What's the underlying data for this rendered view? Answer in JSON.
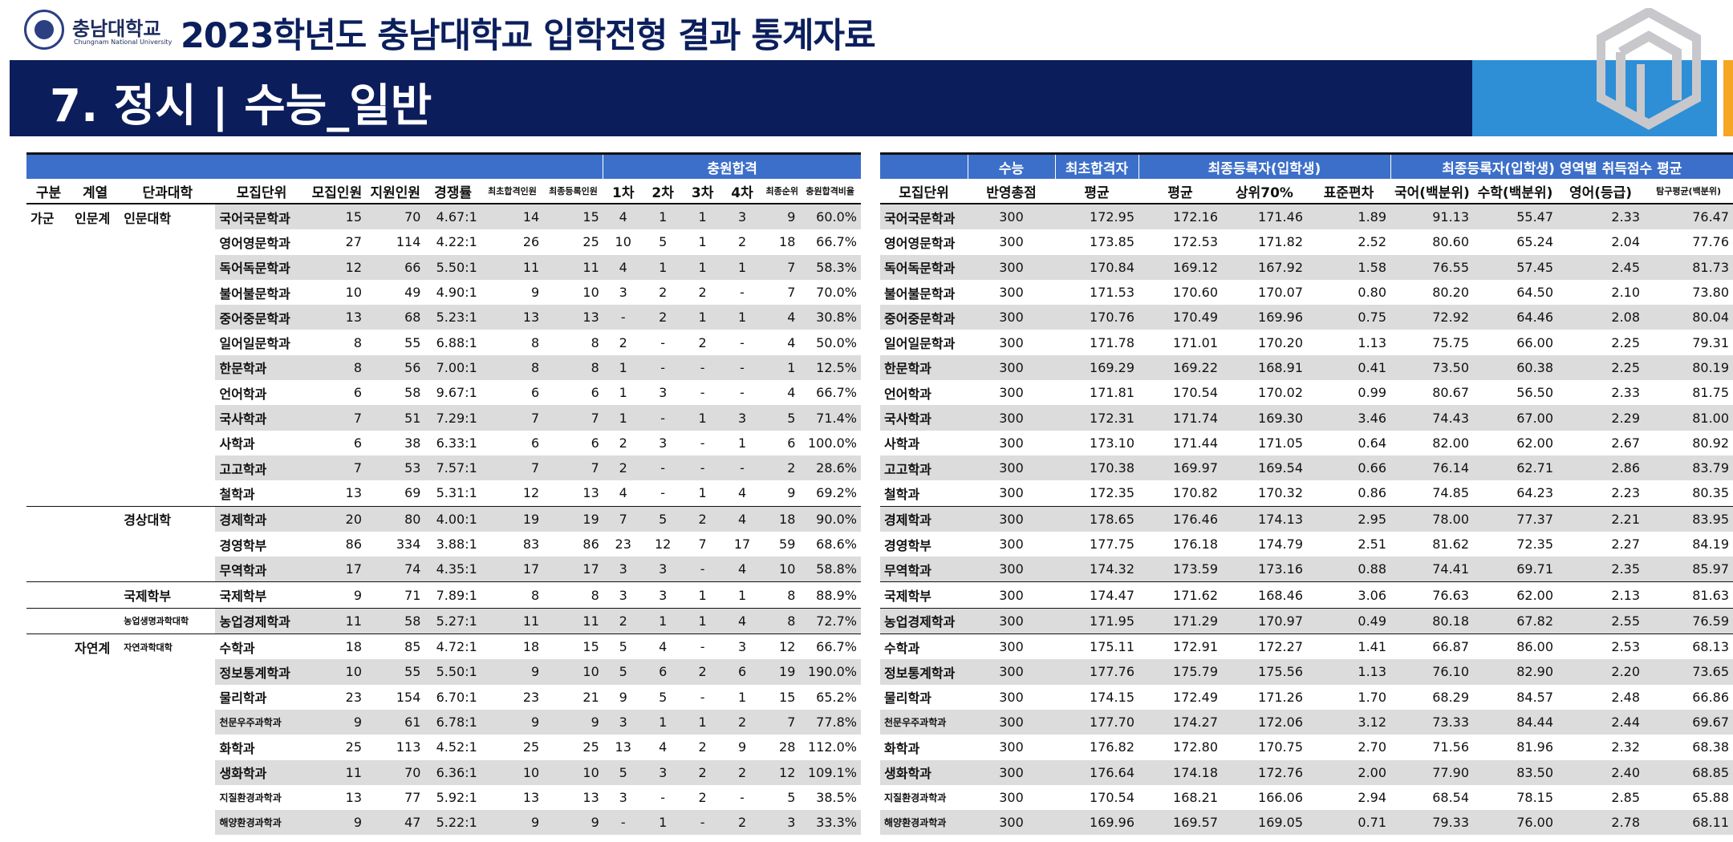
{
  "header": {
    "logo_text": "충남대학교",
    "logo_sub": "Chungnam National University",
    "title": "2023학년도 충남대학교 입학전형 결과 통계자료",
    "section": "7. 정시 | 수능_일반"
  },
  "left_table": {
    "group_header": "충원합격",
    "headers": [
      "구분",
      "계열",
      "단과대학",
      "모집단위",
      "모집인원",
      "지원인원",
      "경쟁률",
      "최초합격인원",
      "최종등록인원",
      "1차",
      "2차",
      "3차",
      "4차",
      "최종순위",
      "충원합격비율"
    ],
    "rows": [
      [
        "가군",
        "인문계",
        "인문대학",
        "국어국문학과",
        "15",
        "70",
        "4.67:1",
        "14",
        "15",
        "4",
        "1",
        "1",
        "3",
        "9",
        "60.0%"
      ],
      [
        "",
        "",
        "",
        "영어영문학과",
        "27",
        "114",
        "4.22:1",
        "26",
        "25",
        "10",
        "5",
        "1",
        "2",
        "18",
        "66.7%"
      ],
      [
        "",
        "",
        "",
        "독어독문학과",
        "12",
        "66",
        "5.50:1",
        "11",
        "11",
        "4",
        "1",
        "1",
        "1",
        "7",
        "58.3%"
      ],
      [
        "",
        "",
        "",
        "불어불문학과",
        "10",
        "49",
        "4.90:1",
        "9",
        "10",
        "3",
        "2",
        "2",
        "-",
        "7",
        "70.0%"
      ],
      [
        "",
        "",
        "",
        "중어중문학과",
        "13",
        "68",
        "5.23:1",
        "13",
        "13",
        "-",
        "2",
        "1",
        "1",
        "4",
        "30.8%"
      ],
      [
        "",
        "",
        "",
        "일어일문학과",
        "8",
        "55",
        "6.88:1",
        "8",
        "8",
        "2",
        "-",
        "2",
        "-",
        "4",
        "50.0%"
      ],
      [
        "",
        "",
        "",
        "한문학과",
        "8",
        "56",
        "7.00:1",
        "8",
        "8",
        "1",
        "-",
        "-",
        "-",
        "1",
        "12.5%"
      ],
      [
        "",
        "",
        "",
        "언어학과",
        "6",
        "58",
        "9.67:1",
        "6",
        "6",
        "1",
        "3",
        "-",
        "-",
        "4",
        "66.7%"
      ],
      [
        "",
        "",
        "",
        "국사학과",
        "7",
        "51",
        "7.29:1",
        "7",
        "7",
        "1",
        "-",
        "1",
        "3",
        "5",
        "71.4%"
      ],
      [
        "",
        "",
        "",
        "사학과",
        "6",
        "38",
        "6.33:1",
        "6",
        "6",
        "2",
        "3",
        "-",
        "1",
        "6",
        "100.0%"
      ],
      [
        "",
        "",
        "",
        "고고학과",
        "7",
        "53",
        "7.57:1",
        "7",
        "7",
        "2",
        "-",
        "-",
        "-",
        "2",
        "28.6%"
      ],
      [
        "",
        "",
        "",
        "철학과",
        "13",
        "69",
        "5.31:1",
        "12",
        "13",
        "4",
        "-",
        "1",
        "4",
        "9",
        "69.2%"
      ],
      [
        "",
        "",
        "경상대학",
        "경제학과",
        "20",
        "80",
        "4.00:1",
        "19",
        "19",
        "7",
        "5",
        "2",
        "4",
        "18",
        "90.0%"
      ],
      [
        "",
        "",
        "",
        "경영학부",
        "86",
        "334",
        "3.88:1",
        "83",
        "86",
        "23",
        "12",
        "7",
        "17",
        "59",
        "68.6%"
      ],
      [
        "",
        "",
        "",
        "무역학과",
        "17",
        "74",
        "4.35:1",
        "17",
        "17",
        "3",
        "3",
        "-",
        "4",
        "10",
        "58.8%"
      ],
      [
        "",
        "",
        "국제학부",
        "국제학부",
        "9",
        "71",
        "7.89:1",
        "8",
        "8",
        "3",
        "3",
        "1",
        "1",
        "8",
        "88.9%"
      ],
      [
        "",
        "",
        "농업생명과학대학",
        "농업경제학과",
        "11",
        "58",
        "5.27:1",
        "11",
        "11",
        "2",
        "1",
        "1",
        "4",
        "8",
        "72.7%"
      ],
      [
        "",
        "자연계",
        "자연과학대학",
        "수학과",
        "18",
        "85",
        "4.72:1",
        "18",
        "15",
        "5",
        "4",
        "-",
        "3",
        "12",
        "66.7%"
      ],
      [
        "",
        "",
        "",
        "정보통계학과",
        "10",
        "55",
        "5.50:1",
        "9",
        "10",
        "5",
        "6",
        "2",
        "6",
        "19",
        "190.0%"
      ],
      [
        "",
        "",
        "",
        "물리학과",
        "23",
        "154",
        "6.70:1",
        "23",
        "21",
        "9",
        "5",
        "-",
        "1",
        "15",
        "65.2%"
      ],
      [
        "",
        "",
        "",
        "천문우주과학과",
        "9",
        "61",
        "6.78:1",
        "9",
        "9",
        "3",
        "1",
        "1",
        "2",
        "7",
        "77.8%"
      ],
      [
        "",
        "",
        "",
        "화학과",
        "25",
        "113",
        "4.52:1",
        "25",
        "25",
        "13",
        "4",
        "2",
        "9",
        "28",
        "112.0%"
      ],
      [
        "",
        "",
        "",
        "생화학과",
        "11",
        "70",
        "6.36:1",
        "10",
        "10",
        "5",
        "3",
        "2",
        "2",
        "12",
        "109.1%"
      ],
      [
        "",
        "",
        "",
        "지질환경과학과",
        "13",
        "77",
        "5.92:1",
        "13",
        "13",
        "3",
        "-",
        "2",
        "-",
        "5",
        "38.5%"
      ],
      [
        "",
        "",
        "",
        "해양환경과학과",
        "9",
        "47",
        "5.22:1",
        "9",
        "9",
        "-",
        "1",
        "-",
        "2",
        "3",
        "33.3%"
      ]
    ]
  },
  "right_table": {
    "group_headers": [
      "수능",
      "최초합격자",
      "최종등록자(입학생)",
      "최종등록자(입학생) 영역별 취득점수 평균"
    ],
    "headers": [
      "모집단위",
      "반영총점",
      "평균",
      "평균",
      "상위70%",
      "표준편차",
      "국어(백분위)",
      "수학(백분위)",
      "영어(등급)",
      "탐구평균(백분위)"
    ],
    "rows": [
      [
        "국어국문학과",
        "300",
        "172.95",
        "172.16",
        "171.46",
        "1.89",
        "91.13",
        "55.47",
        "2.33",
        "76.47"
      ],
      [
        "영어영문학과",
        "300",
        "173.85",
        "172.53",
        "171.82",
        "2.52",
        "80.60",
        "65.24",
        "2.04",
        "77.76"
      ],
      [
        "독어독문학과",
        "300",
        "170.84",
        "169.12",
        "167.92",
        "1.58",
        "76.55",
        "57.45",
        "2.45",
        "81.73"
      ],
      [
        "불어불문학과",
        "300",
        "171.53",
        "170.60",
        "170.07",
        "0.80",
        "80.20",
        "64.50",
        "2.10",
        "73.80"
      ],
      [
        "중어중문학과",
        "300",
        "170.76",
        "170.49",
        "169.96",
        "0.75",
        "72.92",
        "64.46",
        "2.08",
        "80.04"
      ],
      [
        "일어일문학과",
        "300",
        "171.78",
        "171.01",
        "170.20",
        "1.13",
        "75.75",
        "66.00",
        "2.25",
        "79.31"
      ],
      [
        "한문학과",
        "300",
        "169.29",
        "169.22",
        "168.91",
        "0.41",
        "73.50",
        "60.38",
        "2.25",
        "80.19"
      ],
      [
        "언어학과",
        "300",
        "171.81",
        "170.54",
        "170.02",
        "0.99",
        "80.67",
        "56.50",
        "2.33",
        "81.75"
      ],
      [
        "국사학과",
        "300",
        "172.31",
        "171.74",
        "169.30",
        "3.46",
        "74.43",
        "67.00",
        "2.29",
        "81.00"
      ],
      [
        "사학과",
        "300",
        "173.10",
        "171.44",
        "171.05",
        "0.64",
        "82.00",
        "62.00",
        "2.67",
        "80.92"
      ],
      [
        "고고학과",
        "300",
        "170.38",
        "169.97",
        "169.54",
        "0.66",
        "76.14",
        "62.71",
        "2.86",
        "83.79"
      ],
      [
        "철학과",
        "300",
        "172.35",
        "170.82",
        "170.32",
        "0.86",
        "74.85",
        "64.23",
        "2.23",
        "80.35"
      ],
      [
        "경제학과",
        "300",
        "178.65",
        "176.46",
        "174.13",
        "2.95",
        "78.00",
        "77.37",
        "2.21",
        "83.95"
      ],
      [
        "경영학부",
        "300",
        "177.75",
        "176.18",
        "174.79",
        "2.51",
        "81.62",
        "72.35",
        "2.27",
        "84.19"
      ],
      [
        "무역학과",
        "300",
        "174.32",
        "173.59",
        "173.16",
        "0.88",
        "74.41",
        "69.71",
        "2.35",
        "85.97"
      ],
      [
        "국제학부",
        "300",
        "174.47",
        "171.62",
        "168.46",
        "3.06",
        "76.63",
        "62.00",
        "2.13",
        "81.63"
      ],
      [
        "농업경제학과",
        "300",
        "171.95",
        "171.29",
        "170.97",
        "0.49",
        "80.18",
        "67.82",
        "2.55",
        "76.59"
      ],
      [
        "수학과",
        "300",
        "175.11",
        "172.91",
        "172.27",
        "1.41",
        "66.87",
        "86.00",
        "2.53",
        "68.13"
      ],
      [
        "정보통계학과",
        "300",
        "177.76",
        "175.79",
        "175.56",
        "1.13",
        "76.10",
        "82.90",
        "2.20",
        "73.65"
      ],
      [
        "물리학과",
        "300",
        "174.15",
        "172.49",
        "171.26",
        "1.70",
        "68.29",
        "84.57",
        "2.48",
        "66.86"
      ],
      [
        "천문우주과학과",
        "300",
        "177.70",
        "174.27",
        "172.06",
        "3.12",
        "73.33",
        "84.44",
        "2.44",
        "69.67"
      ],
      [
        "화학과",
        "300",
        "176.82",
        "172.80",
        "170.75",
        "2.70",
        "71.56",
        "81.96",
        "2.32",
        "68.38"
      ],
      [
        "생화학과",
        "300",
        "176.64",
        "174.18",
        "172.76",
        "2.00",
        "77.90",
        "83.50",
        "2.40",
        "68.85"
      ],
      [
        "지질환경과학과",
        "300",
        "170.54",
        "168.21",
        "166.06",
        "2.94",
        "68.54",
        "78.15",
        "2.85",
        "65.88"
      ],
      [
        "해양환경과학과",
        "300",
        "169.96",
        "169.57",
        "169.05",
        "0.71",
        "79.33",
        "76.00",
        "2.78",
        "68.11"
      ]
    ]
  }
}
